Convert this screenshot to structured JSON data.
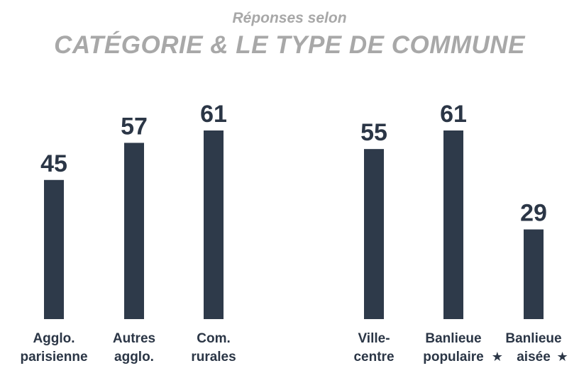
{
  "chart_data": {
    "type": "bar",
    "subtitle": "Réponses selon",
    "title": "CATÉGORIE & LE TYPE DE COMMUNE",
    "categories": [
      [
        "Agglo.",
        "parisienne"
      ],
      [
        "Autres",
        "agglo."
      ],
      [
        "Com.",
        "rurales"
      ],
      [
        "Ville-",
        "centre"
      ],
      [
        "Banlieue",
        "populaire"
      ],
      [
        "Banlieue",
        "aisée"
      ]
    ],
    "values": [
      45,
      57,
      61,
      55,
      61,
      29
    ],
    "starred": [
      false,
      false,
      false,
      false,
      true,
      true
    ],
    "star_symbol": "★",
    "bar_color": "#2e3a4a",
    "xlabel": "",
    "ylabel": "",
    "ylim": [
      0,
      61
    ],
    "grid": false,
    "legend": "none"
  }
}
